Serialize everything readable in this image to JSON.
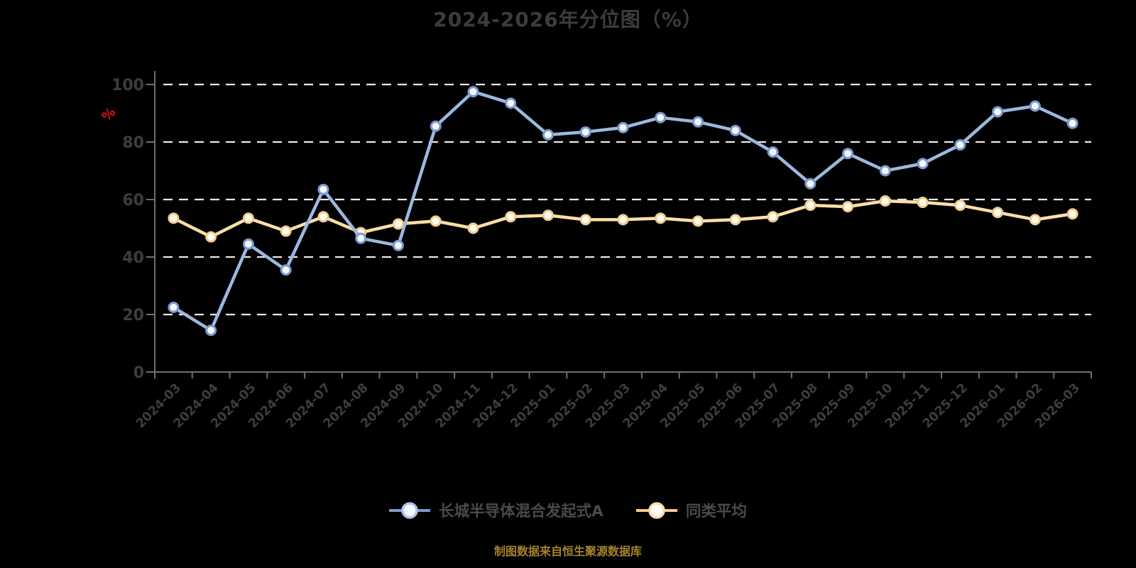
{
  "page": {
    "background": "#000000",
    "axis_color": "#6f6f6f",
    "grid_color": "#e9e9e9",
    "tick_label_color": "#3d3d3d",
    "title_color": "#3c3c3c",
    "legend_text_color": "#4a4a4a"
  },
  "header": {
    "title": "2024-2026年分位图（%）"
  },
  "y_axis": {
    "unit_label": "%",
    "unit_color": "#ee1111"
  },
  "footer": {
    "source": "制图数据来自恒生聚源数据库",
    "color": "#a5832d"
  },
  "chart_data": {
    "type": "line",
    "title": "2024-2026年分位图（%）",
    "xlabel": "",
    "ylabel": "%",
    "ylim": [
      0,
      100
    ],
    "yticks": [
      0,
      20,
      40,
      60,
      80,
      100
    ],
    "grid": "dashed-horizontal",
    "legend_position": "bottom",
    "categories": [
      "2024-03",
      "2024-04",
      "2024-05",
      "2024-06",
      "2024-07",
      "2024-08",
      "2024-09",
      "2024-10",
      "2024-11",
      "2024-12",
      "2025-01",
      "2025-02",
      "2025-03",
      "2025-04",
      "2025-05",
      "2025-06",
      "2025-07",
      "2025-08",
      "2025-09",
      "2025-10",
      "2025-11",
      "2025-12",
      "2026-01",
      "2026-02",
      "2026-03"
    ],
    "series": [
      {
        "name": "长城半导体混合发起式A",
        "color": "#9db8e0",
        "marker_edge": "#7b9ace",
        "marker_fill": "#f4f7fc",
        "legend_ring": "#aec5e8",
        "values": [
          22.5,
          14.5,
          44.5,
          35.5,
          63.5,
          46.5,
          44,
          85.5,
          97.5,
          93.5,
          82.5,
          83.5,
          85,
          88.5,
          87,
          84,
          76.5,
          65.5,
          76,
          70,
          72.5,
          79,
          90.5,
          92.5,
          86.5
        ]
      },
      {
        "name": "同类平均",
        "color": "#fadfa6",
        "marker_edge": "#f3cd8d",
        "marker_fill": "#fffdf5",
        "legend_ring": "#f8dcab",
        "values": [
          53.5,
          47,
          53.5,
          49,
          54,
          48.5,
          51.5,
          52.5,
          50,
          54,
          54.5,
          53,
          53,
          53.5,
          52.5,
          53,
          54,
          58,
          57.5,
          59.5,
          59,
          58,
          55.5,
          53,
          55
        ]
      }
    ]
  }
}
